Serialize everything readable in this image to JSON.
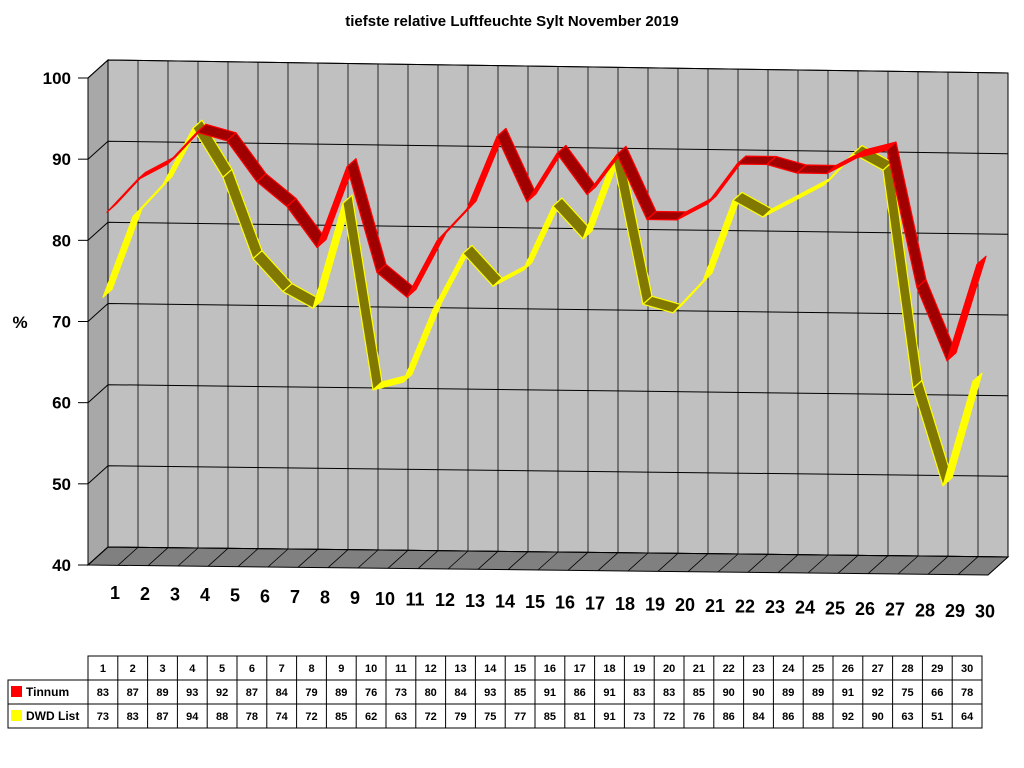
{
  "chart_data": {
    "type": "line",
    "title": "tiefste relative Luftfeuchte Sylt November 2019",
    "ylabel": "%",
    "xlabel": "",
    "ylim": [
      40,
      100
    ],
    "yticks": [
      40,
      50,
      60,
      70,
      80,
      90,
      100
    ],
    "grid": true,
    "categories": [
      "1",
      "2",
      "3",
      "4",
      "5",
      "6",
      "7",
      "8",
      "9",
      "10",
      "11",
      "12",
      "13",
      "14",
      "15",
      "16",
      "17",
      "18",
      "19",
      "20",
      "21",
      "22",
      "23",
      "24",
      "25",
      "26",
      "27",
      "28",
      "29",
      "30"
    ],
    "series": [
      {
        "name": "Tinnum",
        "color": "#ff0000",
        "values": [
          83,
          87,
          89,
          93,
          92,
          87,
          84,
          79,
          89,
          76,
          73,
          80,
          84,
          93,
          85,
          91,
          86,
          91,
          83,
          83,
          85,
          90,
          90,
          89,
          89,
          91,
          92,
          75,
          66,
          78
        ]
      },
      {
        "name": "DWD List",
        "color": "#ffff00",
        "values": [
          73,
          83,
          87,
          94,
          88,
          78,
          74,
          72,
          85,
          62,
          63,
          72,
          79,
          75,
          77,
          85,
          81,
          91,
          73,
          72,
          76,
          86,
          84,
          86,
          88,
          92,
          90,
          63,
          51,
          64
        ]
      }
    ],
    "data_table": true,
    "colors": {
      "wall": "#c0c0c0",
      "floor": "#808080",
      "grid": "#000000"
    }
  }
}
